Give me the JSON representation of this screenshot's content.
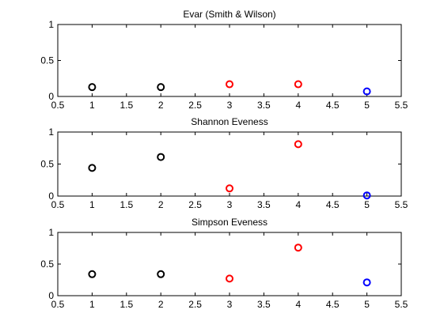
{
  "figure": {
    "background": "#ffffff"
  },
  "chart_data": [
    {
      "type": "scatter",
      "title": "Evar (Smith & Wilson)",
      "xlabel": "",
      "ylabel": "",
      "xlim": [
        0.5,
        5.5
      ],
      "ylim": [
        0,
        1
      ],
      "xticks": [
        "0.5",
        "1",
        "1.5",
        "2",
        "2.5",
        "3",
        "3.5",
        "4",
        "4.5",
        "5",
        "5.5"
      ],
      "yticks": [
        "0",
        "0.5",
        "1"
      ],
      "grid": false,
      "points": [
        {
          "x": 1,
          "y": 0.13,
          "color": "#000000"
        },
        {
          "x": 2,
          "y": 0.13,
          "color": "#000000"
        },
        {
          "x": 3,
          "y": 0.17,
          "color": "#ff0000"
        },
        {
          "x": 4,
          "y": 0.17,
          "color": "#ff0000"
        },
        {
          "x": 5,
          "y": 0.07,
          "color": "#0000ff"
        }
      ]
    },
    {
      "type": "scatter",
      "title": "Shannon Eveness",
      "xlabel": "",
      "ylabel": "",
      "xlim": [
        0.5,
        5.5
      ],
      "ylim": [
        0,
        1
      ],
      "xticks": [
        "0.5",
        "1",
        "1.5",
        "2",
        "2.5",
        "3",
        "3.5",
        "4",
        "4.5",
        "5",
        "5.5"
      ],
      "yticks": [
        "0",
        "0.5",
        "1"
      ],
      "grid": false,
      "points": [
        {
          "x": 1,
          "y": 0.44,
          "color": "#000000"
        },
        {
          "x": 2,
          "y": 0.61,
          "color": "#000000"
        },
        {
          "x": 3,
          "y": 0.12,
          "color": "#ff0000"
        },
        {
          "x": 4,
          "y": 0.81,
          "color": "#ff0000"
        },
        {
          "x": 5,
          "y": 0.01,
          "color": "#0000ff"
        }
      ]
    },
    {
      "type": "scatter",
      "title": "Simpson Eveness",
      "xlabel": "",
      "ylabel": "",
      "xlim": [
        0.5,
        5.5
      ],
      "ylim": [
        0,
        1
      ],
      "xticks": [
        "0.5",
        "1",
        "1.5",
        "2",
        "2.5",
        "3",
        "3.5",
        "4",
        "4.5",
        "5",
        "5.5"
      ],
      "yticks": [
        "0",
        "0.5",
        "1"
      ],
      "grid": false,
      "points": [
        {
          "x": 1,
          "y": 0.34,
          "color": "#000000"
        },
        {
          "x": 2,
          "y": 0.34,
          "color": "#000000"
        },
        {
          "x": 3,
          "y": 0.27,
          "color": "#ff0000"
        },
        {
          "x": 4,
          "y": 0.76,
          "color": "#ff0000"
        },
        {
          "x": 5,
          "y": 0.21,
          "color": "#0000ff"
        }
      ]
    }
  ]
}
